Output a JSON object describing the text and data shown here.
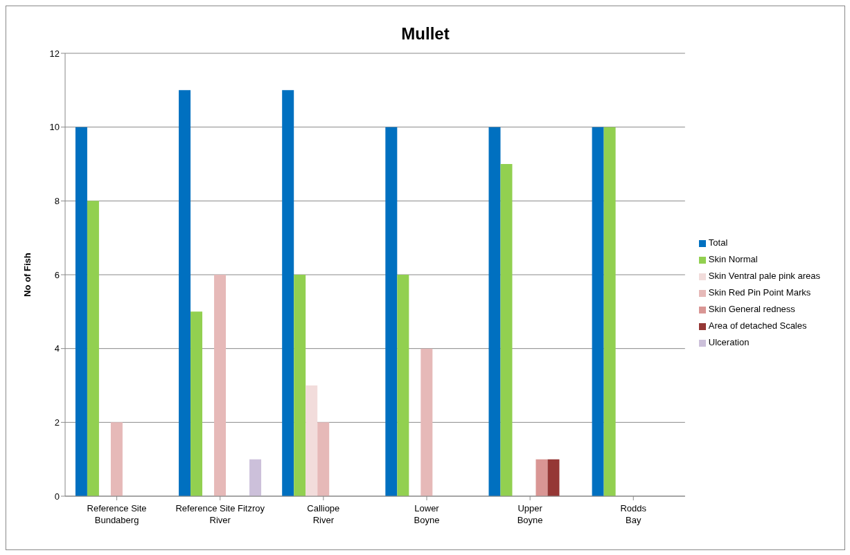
{
  "chart_data": {
    "type": "bar",
    "title": "Mullet",
    "ylabel": "No of Fish",
    "categories": [
      "Reference Site Bundaberg",
      "Reference Site Fitzroy River",
      "Calliope River",
      "Lower Boyne",
      "Upper Boyne",
      "Rodds Bay"
    ],
    "series": [
      {
        "name": "Total",
        "color": "#0070c0",
        "values": [
          10,
          11,
          11,
          10,
          10,
          10
        ]
      },
      {
        "name": "Skin Normal",
        "color": "#92d050",
        "values": [
          8,
          5,
          6,
          6,
          9,
          10
        ]
      },
      {
        "name": "Skin Ventral pale pink areas",
        "color": "#f2dcdb",
        "values": [
          null,
          null,
          3,
          null,
          null,
          null
        ]
      },
      {
        "name": "Skin Red Pin Point Marks",
        "color": "#e6b9b8",
        "values": [
          2,
          6,
          2,
          4,
          null,
          null
        ]
      },
      {
        "name": "Skin General redness",
        "color": "#d99694",
        "values": [
          null,
          null,
          null,
          null,
          1,
          null
        ]
      },
      {
        "name": "Area of detached Scales",
        "color": "#953735",
        "values": [
          null,
          null,
          null,
          null,
          1,
          null
        ]
      },
      {
        "name": "Ulceration",
        "color": "#ccc0da",
        "values": [
          null,
          1,
          null,
          null,
          null,
          null
        ]
      }
    ],
    "ylim": [
      0,
      12
    ],
    "yticks": [
      0,
      2,
      4,
      6,
      8,
      10,
      12
    ],
    "grid": "y",
    "legend": "right"
  }
}
